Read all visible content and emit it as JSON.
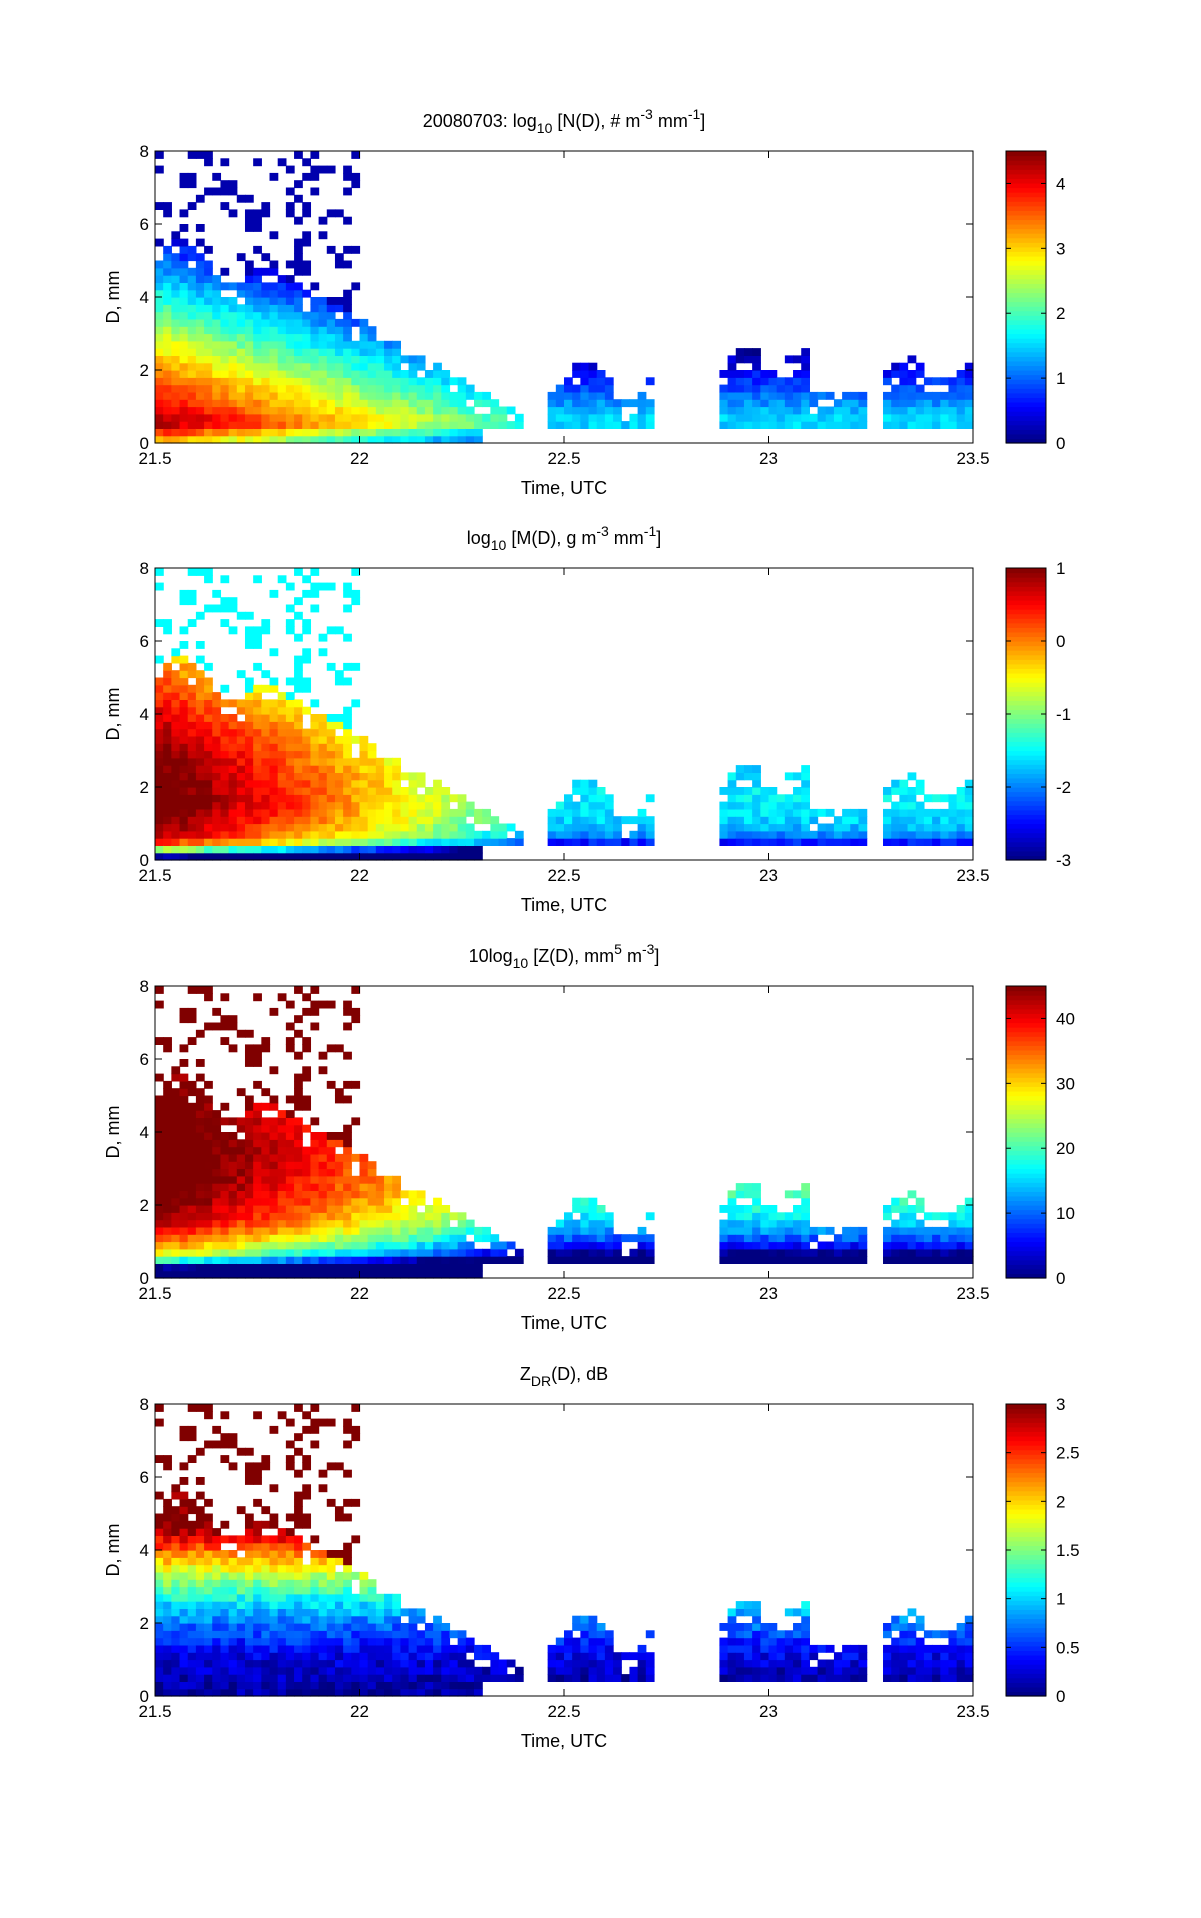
{
  "chart_data": [
    {
      "type": "heatmap",
      "title": {
        "prefix": "20080703: log",
        "sub": "10",
        "mid": " [N(D), # m",
        "sup1": "-3",
        "mid2": " mm",
        "sup2": "-1",
        "suffix": "]"
      },
      "xlabel": "Time, UTC",
      "ylabel": "D, mm",
      "xlim": [
        21.5,
        23.5
      ],
      "ylim": [
        0,
        8
      ],
      "xticks": [
        "21.5",
        "22",
        "22.5",
        "23",
        "23.5"
      ],
      "yticks": [
        "0",
        "2",
        "4",
        "6",
        "8"
      ],
      "colorbar": {
        "range": [
          0,
          4.5
        ],
        "ticks": [
          "0",
          "1",
          "2",
          "3",
          "4"
        ],
        "colormap": "jet"
      },
      "field": "N"
    },
    {
      "type": "heatmap",
      "title": {
        "prefix": "log",
        "sub": "10",
        "mid": " [M(D), g m",
        "sup1": "-3",
        "mid2": " mm",
        "sup2": "-1",
        "suffix": "]"
      },
      "xlabel": "Time, UTC",
      "ylabel": "D, mm",
      "xlim": [
        21.5,
        23.5
      ],
      "ylim": [
        0,
        8
      ],
      "xticks": [
        "21.5",
        "22",
        "22.5",
        "23",
        "23.5"
      ],
      "yticks": [
        "0",
        "2",
        "4",
        "6",
        "8"
      ],
      "colorbar": {
        "range": [
          -3,
          1
        ],
        "ticks": [
          "-3",
          "-2",
          "-1",
          "0",
          "1"
        ],
        "colormap": "jet"
      },
      "field": "M"
    },
    {
      "type": "heatmap",
      "title": {
        "prefix": "10log",
        "sub": "10",
        "mid": " [Z(D),  mm",
        "sup1": "5",
        "mid2": " m",
        "sup2": "-3",
        "suffix": "]"
      },
      "xlabel": "Time, UTC",
      "ylabel": "D, mm",
      "xlim": [
        21.5,
        23.5
      ],
      "ylim": [
        0,
        8
      ],
      "xticks": [
        "21.5",
        "22",
        "22.5",
        "23",
        "23.5"
      ],
      "yticks": [
        "0",
        "2",
        "4",
        "6",
        "8"
      ],
      "colorbar": {
        "range": [
          0,
          45
        ],
        "ticks": [
          "0",
          "10",
          "20",
          "30",
          "40"
        ],
        "colormap": "jet"
      },
      "field": "Z"
    },
    {
      "type": "heatmap",
      "title": {
        "prefix": "Z",
        "sub": "DR",
        "mid": "(D), dB",
        "sup1": "",
        "mid2": "",
        "sup2": "",
        "suffix": ""
      },
      "xlabel": "Time, UTC",
      "ylabel": "D, mm",
      "xlim": [
        21.5,
        23.5
      ],
      "ylim": [
        0,
        8
      ],
      "xticks": [
        "21.5",
        "22",
        "22.5",
        "23",
        "23.5"
      ],
      "yticks": [
        "0",
        "2",
        "4",
        "6",
        "8"
      ],
      "colorbar": {
        "range": [
          0,
          3
        ],
        "ticks": [
          "0",
          "0.5",
          "1",
          "1.5",
          "2",
          "2.5",
          "3"
        ],
        "colormap": "jet"
      },
      "field": "ZDR"
    }
  ]
}
